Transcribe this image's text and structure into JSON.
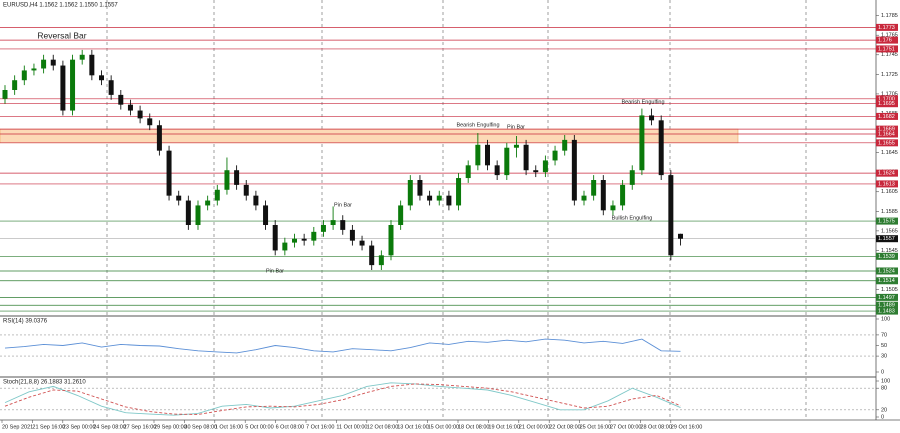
{
  "chart_data": [
    {
      "type": "candlestick",
      "title": "EURUSD,H4  1.1562 1.1562 1.1550 1.1557",
      "candles": [
        [
          1.17,
          1.1714,
          1.1695,
          1.1709
        ],
        [
          1.1709,
          1.1724,
          1.1704,
          1.1719
        ],
        [
          1.1719,
          1.1734,
          1.1714,
          1.1729
        ],
        [
          1.1729,
          1.1736,
          1.1724,
          1.1731
        ],
        [
          1.1731,
          1.1745,
          1.1726,
          1.174
        ],
        [
          1.174,
          1.1745,
          1.1729,
          1.1734
        ],
        [
          1.1734,
          1.1739,
          1.1683,
          1.1688
        ],
        [
          1.1688,
          1.1745,
          1.1683,
          1.174
        ],
        [
          1.174,
          1.175,
          1.1735,
          1.1745
        ],
        [
          1.1745,
          1.175,
          1.1719,
          1.1724
        ],
        [
          1.1724,
          1.1729,
          1.1714,
          1.1719
        ],
        [
          1.1719,
          1.1724,
          1.1699,
          1.1704
        ],
        [
          1.1704,
          1.1709,
          1.1689,
          1.1694
        ],
        [
          1.1694,
          1.1699,
          1.1683,
          1.1688
        ],
        [
          1.1688,
          1.1693,
          1.1675,
          1.168
        ],
        [
          1.168,
          1.1685,
          1.1668,
          1.1673
        ],
        [
          1.1673,
          1.1678,
          1.1642,
          1.1647
        ],
        [
          1.1647,
          1.1652,
          1.1596,
          1.1601
        ],
        [
          1.1601,
          1.1606,
          1.1591,
          1.1596
        ],
        [
          1.1596,
          1.1601,
          1.1566,
          1.1571
        ],
        [
          1.1571,
          1.1596,
          1.1566,
          1.1591
        ],
        [
          1.1591,
          1.1601,
          1.1586,
          1.1596
        ],
        [
          1.1596,
          1.1612,
          1.1591,
          1.1607
        ],
        [
          1.1607,
          1.164,
          1.1602,
          1.1627
        ],
        [
          1.1627,
          1.1632,
          1.1607,
          1.1612
        ],
        [
          1.1612,
          1.1617,
          1.1596,
          1.1601
        ],
        [
          1.1601,
          1.1606,
          1.1586,
          1.1591
        ],
        [
          1.1591,
          1.1596,
          1.1566,
          1.1571
        ],
        [
          1.1571,
          1.1576,
          1.154,
          1.1545
        ],
        [
          1.1545,
          1.1558,
          1.154,
          1.1553
        ],
        [
          1.1553,
          1.1562,
          1.1548,
          1.1557
        ],
        [
          1.1557,
          1.1562,
          1.155,
          1.1555
        ],
        [
          1.1555,
          1.1569,
          1.155,
          1.1564
        ],
        [
          1.1564,
          1.1576,
          1.1559,
          1.1571
        ],
        [
          1.1571,
          1.159,
          1.1566,
          1.1576
        ],
        [
          1.1576,
          1.1581,
          1.1561,
          1.1566
        ],
        [
          1.1566,
          1.1571,
          1.155,
          1.1555
        ],
        [
          1.1555,
          1.156,
          1.1545,
          1.155
        ],
        [
          1.155,
          1.1555,
          1.1525,
          1.153
        ],
        [
          1.153,
          1.1545,
          1.1525,
          1.154
        ],
        [
          1.154,
          1.1576,
          1.1535,
          1.1571
        ],
        [
          1.1571,
          1.1596,
          1.1566,
          1.1591
        ],
        [
          1.1591,
          1.1622,
          1.1586,
          1.1617
        ],
        [
          1.1617,
          1.1622,
          1.1596,
          1.1601
        ],
        [
          1.1601,
          1.1606,
          1.1591,
          1.1596
        ],
        [
          1.1596,
          1.1606,
          1.1591,
          1.1601
        ],
        [
          1.1601,
          1.1606,
          1.1586,
          1.1591
        ],
        [
          1.1591,
          1.1624,
          1.1586,
          1.1619
        ],
        [
          1.1619,
          1.1637,
          1.1614,
          1.1632
        ],
        [
          1.1632,
          1.1665,
          1.1627,
          1.1653
        ],
        [
          1.1653,
          1.1658,
          1.1627,
          1.1632
        ],
        [
          1.1632,
          1.1637,
          1.1617,
          1.1622
        ],
        [
          1.1622,
          1.1655,
          1.1617,
          1.165
        ],
        [
          1.165,
          1.1662,
          1.164,
          1.1653
        ],
        [
          1.1653,
          1.1658,
          1.1622,
          1.1627
        ],
        [
          1.1627,
          1.1632,
          1.162,
          1.1625
        ],
        [
          1.1625,
          1.1642,
          1.162,
          1.1637
        ],
        [
          1.1637,
          1.1652,
          1.1632,
          1.1647
        ],
        [
          1.1647,
          1.1663,
          1.1642,
          1.1658
        ],
        [
          1.1658,
          1.1663,
          1.1591,
          1.1596
        ],
        [
          1.1596,
          1.1606,
          1.1591,
          1.1601
        ],
        [
          1.1601,
          1.1622,
          1.1596,
          1.1617
        ],
        [
          1.1617,
          1.1622,
          1.1581,
          1.1586
        ],
        [
          1.1586,
          1.1596,
          1.1581,
          1.1591
        ],
        [
          1.1591,
          1.1617,
          1.1586,
          1.1612
        ],
        [
          1.1612,
          1.1632,
          1.1607,
          1.1627
        ],
        [
          1.1627,
          1.169,
          1.1622,
          1.1683
        ],
        [
          1.1683,
          1.169,
          1.1673,
          1.1678
        ],
        [
          1.1678,
          1.1683,
          1.1617,
          1.1622
        ],
        [
          1.1622,
          1.1627,
          1.1535,
          1.154
        ],
        [
          1.1562,
          1.1562,
          1.155,
          1.1557
        ]
      ],
      "bull_color": "#0b7a0b",
      "bear_color": "#111111",
      "ylim": [
        1.1479,
        1.1801
      ],
      "yticks": [
        1.1785,
        1.1765,
        1.1745,
        1.1725,
        1.1705,
        1.1685,
        1.1665,
        1.1645,
        1.1625,
        1.1605,
        1.1585,
        1.1565,
        1.1545,
        1.1525,
        1.1505
      ],
      "resistance_levels": [
        1.1773,
        1.176,
        1.1751,
        {
          "value": 1.17,
          "label": "1.1700"
        },
        1.1695,
        1.1682,
        1.1669,
        1.1664,
        1.1655,
        1.1624,
        1.1613
      ],
      "resistance_color": "#c8283c",
      "support_levels": [
        1.1575,
        1.1539,
        1.1524,
        1.1514,
        1.1497,
        1.1489,
        1.1483
      ],
      "support_color": "#2e7d32",
      "zone": [
        1.1655,
        1.1669
      ],
      "zone_color": "#fcd9b6",
      "current_price": 1.1557,
      "annotations": [
        "Reversal Bar",
        "Bearish Engulfing",
        "Pin Bar",
        "Pin Bar",
        "Pin Bar",
        "Bearish Engulfing",
        "Bullish Engulfing"
      ],
      "x_labels": [
        "20 Sep 2021",
        "21 Sep 16:00",
        "23 Sep 00:00",
        "24 Sep 08:00",
        "27 Sep 16:00",
        "29 Sep 00:00",
        "30 Sep 08:00",
        "1 Oct 16:00",
        "5 Oct 00:00",
        "6 Oct 08:00",
        "7 Oct 16:00",
        "11 Oct 00:00",
        "12 Oct 08:00",
        "13 Oct 16:00",
        "15 Oct 00:00",
        "18 Oct 08:00",
        "19 Oct 16:00",
        "21 Oct 00:00",
        "22 Oct 08:00",
        "25 Oct 16:00",
        "27 Oct 00:00",
        "28 Oct 08:00",
        "29 Oct 16:00"
      ]
    },
    {
      "type": "line",
      "title": "RSI(14) 39.0376",
      "ylim": [
        0,
        100
      ],
      "yticks": [
        0,
        30,
        50,
        70,
        100
      ],
      "levels": [
        30,
        70
      ],
      "color": "#5b8fd6",
      "values": [
        45,
        48,
        52,
        50,
        55,
        47,
        52,
        50,
        49,
        44,
        40,
        38,
        36,
        42,
        50,
        46,
        40,
        38,
        44,
        42,
        40,
        46,
        55,
        52,
        58,
        56,
        60,
        57,
        62,
        60,
        55,
        58,
        54,
        62,
        40,
        39
      ]
    },
    {
      "type": "line",
      "title": "Stoch(21,8,8) 26.1883 31.2610",
      "ylim": [
        0,
        100
      ],
      "yticks": [
        0,
        20,
        80,
        100
      ],
      "levels": [
        20,
        80
      ],
      "series": [
        {
          "color": "#7fc8c8",
          "dash": false,
          "values": [
            40,
            70,
            85,
            60,
            30,
            12,
            8,
            5,
            10,
            30,
            35,
            25,
            30,
            45,
            60,
            85,
            95,
            92,
            85,
            80,
            75,
            60,
            40,
            20,
            20,
            45,
            80,
            55,
            26
          ]
        },
        {
          "color": "#d05050",
          "dash": true,
          "values": [
            30,
            55,
            75,
            72,
            50,
            28,
            15,
            8,
            7,
            18,
            28,
            30,
            28,
            35,
            48,
            68,
            85,
            92,
            90,
            85,
            80,
            70,
            55,
            40,
            25,
            30,
            50,
            60,
            31
          ]
        }
      ]
    }
  ]
}
